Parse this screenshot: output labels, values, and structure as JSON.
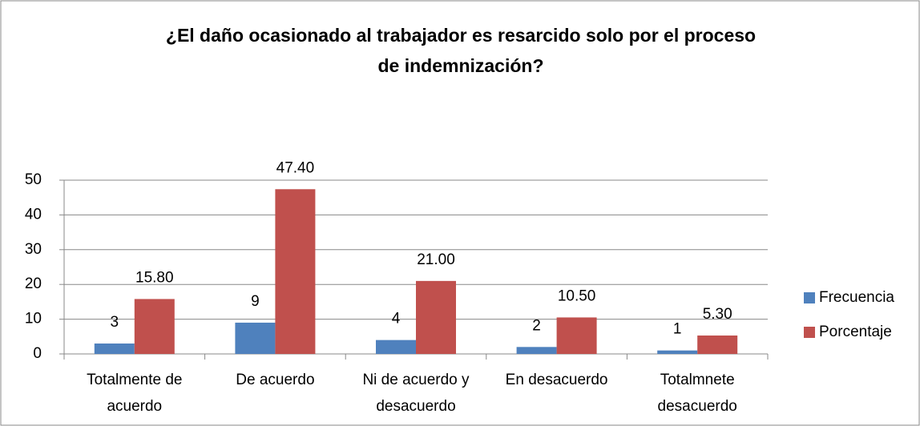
{
  "chart_data": {
    "type": "bar",
    "title": [
      "¿El daño ocasionado al trabajador es resarcido solo por el proceso",
      "de indemnización?"
    ],
    "categories": [
      [
        "Totalmente de",
        "acuerdo"
      ],
      [
        "De acuerdo"
      ],
      [
        "Ni de acuerdo y",
        "desacuerdo"
      ],
      [
        "En desacuerdo"
      ],
      [
        "Totalmnete",
        "desacuerdo"
      ]
    ],
    "series": [
      {
        "name": "Frecuencia",
        "color": "#4f81bd",
        "values": [
          3,
          9,
          4,
          2,
          1
        ]
      },
      {
        "name": "Porcentaje",
        "color": "#c0504d",
        "values": [
          15.8,
          47.4,
          21,
          10.5,
          5.3
        ],
        "value_labels": [
          "15.80",
          "47.40",
          "21.00",
          "10.50",
          "5.30"
        ]
      }
    ],
    "ylim": [
      0,
      50
    ],
    "yticks": [
      0,
      10,
      20,
      30,
      40,
      50
    ],
    "grid": true,
    "legend": "right"
  }
}
